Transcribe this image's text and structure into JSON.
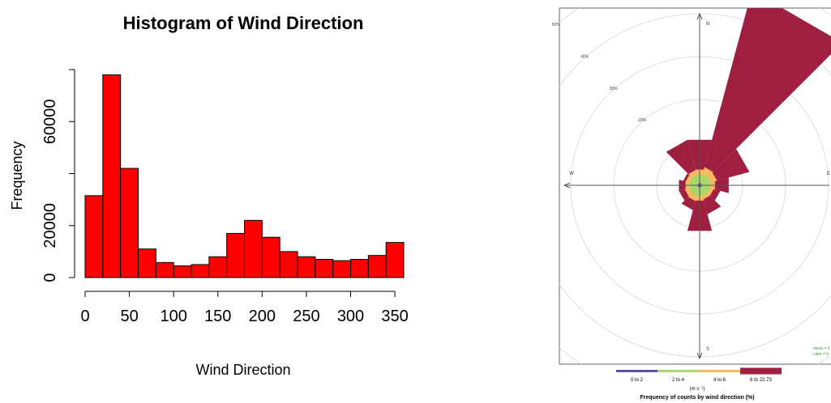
{
  "chart_data": [
    {
      "type": "bar",
      "title": "Histogram of Wind Direction",
      "xlabel": "Wind Direction",
      "ylabel": "Frequency",
      "bin_edges": [
        0,
        20,
        40,
        60,
        80,
        100,
        120,
        140,
        160,
        180,
        200,
        220,
        240,
        260,
        280,
        300,
        320,
        340,
        360
      ],
      "values": [
        31500,
        78000,
        42000,
        11000,
        5800,
        4500,
        5000,
        8000,
        17000,
        22000,
        15500,
        10000,
        8000,
        7000,
        6500,
        7000,
        8500,
        13500
      ],
      "xlim": [
        0,
        360
      ],
      "ylim": [
        0,
        80000
      ],
      "xticks": [
        "0",
        "50",
        "100",
        "150",
        "200",
        "250",
        "300",
        "350"
      ],
      "xtick_values": [
        0,
        50,
        100,
        150,
        200,
        250,
        300,
        350
      ],
      "yticks": [
        "0",
        "20000",
        "60000"
      ],
      "ytick_values": [
        0,
        20000,
        60000
      ],
      "bar_color": "#ff0000",
      "bar_edge_color": "#000000"
    },
    {
      "type": "windrose",
      "compass": [
        "N",
        "E",
        "S",
        "W"
      ],
      "ring_labels": [
        "10%",
        "20%",
        "30%",
        "40%",
        "50%"
      ],
      "ring_values": [
        10,
        20,
        30,
        40,
        50
      ],
      "legend_title": "(m s⁻¹)",
      "caption": "Frequency of counts by wind direction (%)",
      "stats_text": [
        "mean = 6",
        "calm = 0"
      ],
      "bins": [
        {
          "label": "0 to 2",
          "color": "#5e4fa2"
        },
        {
          "label": "2 to 4",
          "color": "#a6d96a"
        },
        {
          "label": "4 to 6",
          "color": "#fdb863"
        },
        {
          "label": "6 to 22.73",
          "color": "#9e1f3f"
        }
      ],
      "directions": [
        0,
        30,
        60,
        90,
        120,
        150,
        180,
        210,
        240,
        270,
        300,
        330
      ],
      "cumulative_percent": [
        [
          0.5,
          0.5,
          0.5,
          0.5,
          0.5,
          0.5,
          0.5,
          0.5,
          0.5,
          0.5,
          0.5,
          0.5
        ],
        [
          2.5,
          2.7,
          2.7,
          2.6,
          2.5,
          2.5,
          2.6,
          2.6,
          2.5,
          2.5,
          2.5,
          2.6
        ],
        [
          3.8,
          4.4,
          4.2,
          3.7,
          3.4,
          3.4,
          3.7,
          3.8,
          3.6,
          3.4,
          3.4,
          3.7
        ],
        [
          11,
          47,
          12,
          7,
          5,
          7,
          11,
          6,
          5,
          5,
          4,
          11
        ]
      ]
    }
  ]
}
